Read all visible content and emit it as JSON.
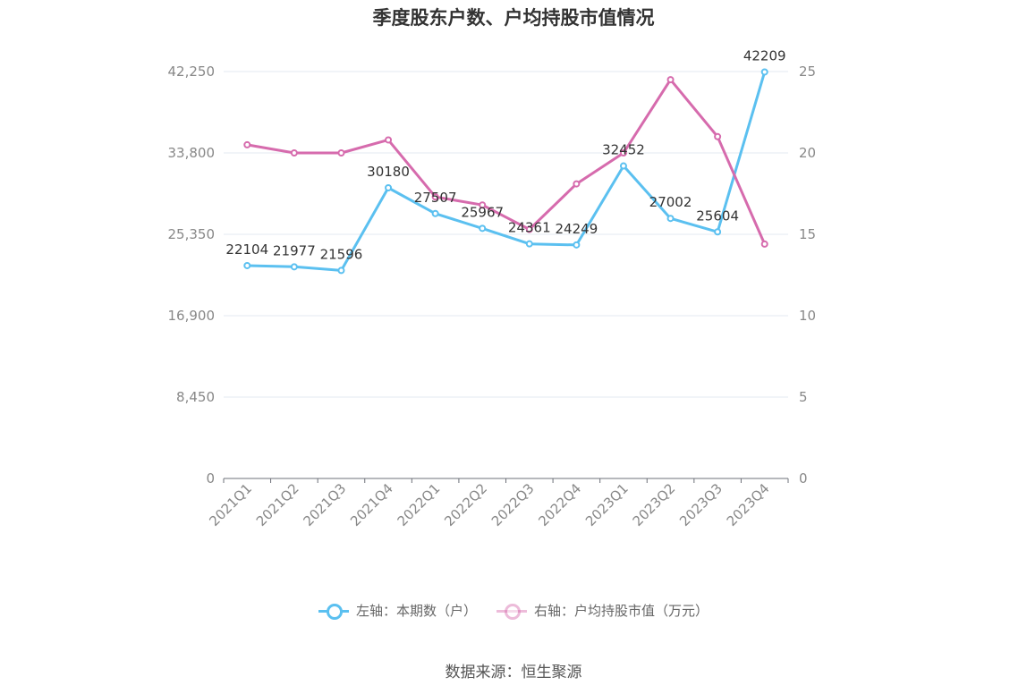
{
  "chart_data": {
    "type": "line",
    "title": "季度股东户数、户均持股市值情况",
    "categories": [
      "2021Q1",
      "2021Q2",
      "2021Q3",
      "2021Q4",
      "2022Q1",
      "2022Q2",
      "2022Q3",
      "2022Q4",
      "2023Q1",
      "2023Q2",
      "2023Q3",
      "2023Q4"
    ],
    "series": [
      {
        "name": "左轴：本期数（户）",
        "axis": "left",
        "color": "#5bc0f0",
        "values": [
          22104,
          21977,
          21596,
          30180,
          27507,
          25967,
          24361,
          24249,
          32452,
          27002,
          25604,
          42209
        ],
        "labels": [
          "22104",
          "21977",
          "21596",
          "30180",
          "27507",
          "25967",
          "24361",
          "24249",
          "32452",
          "27002",
          "25604",
          "42209"
        ]
      },
      {
        "name": "右轴：户均持股市值（万元）",
        "axis": "right",
        "color": "#d66bad",
        "values": [
          20.5,
          20.0,
          20.0,
          20.8,
          17.3,
          16.8,
          15.3,
          18.1,
          20.0,
          24.5,
          21.0,
          14.4
        ]
      }
    ],
    "left_axis": {
      "range": [
        0,
        42250
      ],
      "ticks": [
        "0",
        "8,450",
        "16,900",
        "25,350",
        "33,800",
        "42,250"
      ]
    },
    "right_axis": {
      "range": [
        0,
        25
      ],
      "ticks": [
        "0",
        "5",
        "10",
        "15",
        "20",
        "25"
      ]
    },
    "grid": true,
    "legend_position": "bottom"
  },
  "legend": {
    "left_label": "左轴：本期数（户）",
    "right_label": "右轴：户均持股市值（万元）"
  },
  "source": "数据来源：恒生聚源",
  "colors": {
    "grid": "#e3e9f2",
    "axis": "#6e7079",
    "tick_text": "#888888",
    "label_text": "#333333"
  }
}
